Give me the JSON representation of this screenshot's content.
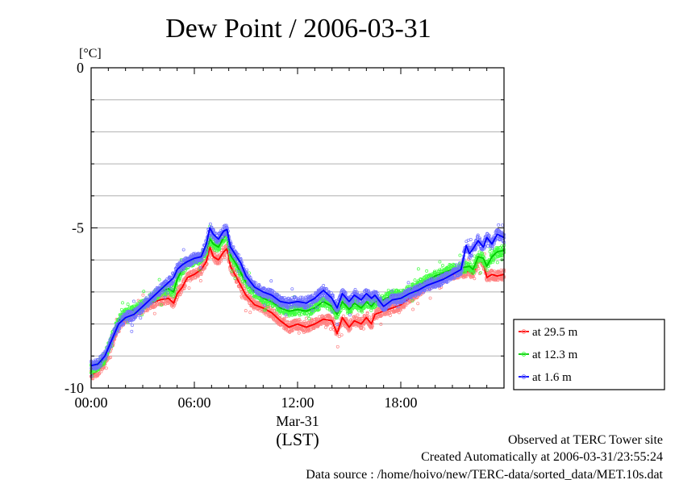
{
  "chart_data": {
    "type": "line",
    "title": "Dew Point / 2006-03-31",
    "unit_label": "[°C]",
    "xlabel": "(LST)",
    "x_date_label": "Mar-31",
    "xlim": [
      0,
      24
    ],
    "ylim": [
      -10,
      0
    ],
    "x_ticks": [
      {
        "x": 0,
        "label": "00:00"
      },
      {
        "x": 6,
        "label": "06:00"
      },
      {
        "x": 12,
        "label": "12:00"
      },
      {
        "x": 18,
        "label": "18:00"
      }
    ],
    "y_ticks": [
      {
        "y": 0,
        "label": "0"
      },
      {
        "y": -5,
        "label": "-5"
      },
      {
        "y": -10,
        "label": "-10"
      }
    ],
    "y_grid": [
      -1,
      -2,
      -3,
      -4,
      -5,
      -6,
      -7,
      -8,
      -9
    ],
    "grid": true,
    "legend_position": "right",
    "series": [
      {
        "name": "at 29.5 m",
        "color": "#ff0000",
        "light_color": "#ff8080",
        "points": [
          [
            0.0,
            -9.6
          ],
          [
            0.4,
            -9.45
          ],
          [
            0.8,
            -9.2
          ],
          [
            1.2,
            -8.6
          ],
          [
            1.6,
            -8.1
          ],
          [
            2.0,
            -7.8
          ],
          [
            2.5,
            -7.65
          ],
          [
            3.0,
            -7.5
          ],
          [
            3.5,
            -7.35
          ],
          [
            4.0,
            -7.25
          ],
          [
            4.5,
            -7.2
          ],
          [
            4.8,
            -7.35
          ],
          [
            5.0,
            -7.05
          ],
          [
            5.3,
            -6.85
          ],
          [
            5.6,
            -6.55
          ],
          [
            6.0,
            -6.45
          ],
          [
            6.4,
            -6.3
          ],
          [
            6.7,
            -6.05
          ],
          [
            6.9,
            -5.6
          ],
          [
            7.1,
            -5.9
          ],
          [
            7.4,
            -6.0
          ],
          [
            7.7,
            -5.75
          ],
          [
            7.9,
            -5.65
          ],
          [
            8.1,
            -6.2
          ],
          [
            8.4,
            -6.5
          ],
          [
            8.7,
            -6.8
          ],
          [
            9.0,
            -7.1
          ],
          [
            9.5,
            -7.4
          ],
          [
            10.0,
            -7.5
          ],
          [
            10.5,
            -7.65
          ],
          [
            11.0,
            -7.9
          ],
          [
            11.5,
            -8.1
          ],
          [
            12.0,
            -8.0
          ],
          [
            12.5,
            -8.1
          ],
          [
            13.0,
            -8.0
          ],
          [
            13.5,
            -7.85
          ],
          [
            14.0,
            -7.9
          ],
          [
            14.3,
            -8.3
          ],
          [
            14.6,
            -7.8
          ],
          [
            15.0,
            -8.1
          ],
          [
            15.3,
            -7.9
          ],
          [
            15.7,
            -8.0
          ],
          [
            16.0,
            -7.8
          ],
          [
            16.3,
            -8.0
          ],
          [
            16.5,
            -7.7
          ],
          [
            17.0,
            -7.6
          ],
          [
            17.5,
            -7.5
          ],
          [
            18.0,
            -7.4
          ],
          [
            18.5,
            -7.2
          ],
          [
            19.0,
            -7.0
          ],
          [
            19.5,
            -6.8
          ],
          [
            20.0,
            -6.65
          ],
          [
            20.5,
            -6.55
          ],
          [
            21.0,
            -6.45
          ],
          [
            21.5,
            -6.4
          ],
          [
            22.0,
            -6.35
          ],
          [
            22.2,
            -6.45
          ],
          [
            22.5,
            -6.0
          ],
          [
            22.8,
            -6.1
          ],
          [
            23.0,
            -6.55
          ],
          [
            23.3,
            -6.45
          ],
          [
            23.6,
            -6.5
          ],
          [
            24.0,
            -6.45
          ]
        ]
      },
      {
        "name": "at 12.3 m",
        "color": "#00c800",
        "light_color": "#40ff40",
        "points": [
          [
            0.0,
            -9.4
          ],
          [
            0.4,
            -9.3
          ],
          [
            0.8,
            -9.05
          ],
          [
            1.2,
            -8.4
          ],
          [
            1.6,
            -7.9
          ],
          [
            2.0,
            -7.7
          ],
          [
            2.5,
            -7.55
          ],
          [
            3.0,
            -7.4
          ],
          [
            3.5,
            -7.2
          ],
          [
            4.0,
            -7.0
          ],
          [
            4.5,
            -6.9
          ],
          [
            4.8,
            -7.0
          ],
          [
            5.0,
            -6.6
          ],
          [
            5.3,
            -6.3
          ],
          [
            5.6,
            -6.1
          ],
          [
            6.0,
            -6.0
          ],
          [
            6.4,
            -5.95
          ],
          [
            6.7,
            -5.7
          ],
          [
            6.9,
            -5.35
          ],
          [
            7.1,
            -5.5
          ],
          [
            7.4,
            -5.6
          ],
          [
            7.7,
            -5.3
          ],
          [
            7.9,
            -5.2
          ],
          [
            8.1,
            -5.85
          ],
          [
            8.4,
            -6.1
          ],
          [
            8.7,
            -6.4
          ],
          [
            9.0,
            -6.7
          ],
          [
            9.5,
            -7.0
          ],
          [
            10.0,
            -7.2
          ],
          [
            10.5,
            -7.3
          ],
          [
            11.0,
            -7.5
          ],
          [
            11.5,
            -7.6
          ],
          [
            12.0,
            -7.55
          ],
          [
            12.5,
            -7.6
          ],
          [
            13.0,
            -7.5
          ],
          [
            13.5,
            -7.3
          ],
          [
            14.0,
            -7.45
          ],
          [
            14.3,
            -7.7
          ],
          [
            14.6,
            -7.3
          ],
          [
            15.0,
            -7.55
          ],
          [
            15.3,
            -7.35
          ],
          [
            15.7,
            -7.5
          ],
          [
            16.0,
            -7.3
          ],
          [
            16.3,
            -7.45
          ],
          [
            16.5,
            -7.3
          ],
          [
            17.0,
            -7.25
          ],
          [
            17.5,
            -7.1
          ],
          [
            18.0,
            -7.1
          ],
          [
            18.5,
            -6.95
          ],
          [
            19.0,
            -6.8
          ],
          [
            19.5,
            -6.65
          ],
          [
            20.0,
            -6.5
          ],
          [
            20.5,
            -6.4
          ],
          [
            21.0,
            -6.3
          ],
          [
            21.5,
            -6.25
          ],
          [
            22.0,
            -6.2
          ],
          [
            22.2,
            -6.3
          ],
          [
            22.5,
            -5.9
          ],
          [
            22.8,
            -5.95
          ],
          [
            23.0,
            -6.2
          ],
          [
            23.3,
            -5.9
          ],
          [
            23.6,
            -5.75
          ],
          [
            24.0,
            -5.7
          ]
        ]
      },
      {
        "name": "at 1.6 m",
        "color": "#0000ff",
        "light_color": "#7070ff",
        "points": [
          [
            0.0,
            -9.3
          ],
          [
            0.4,
            -9.25
          ],
          [
            0.8,
            -9.0
          ],
          [
            1.2,
            -8.5
          ],
          [
            1.6,
            -8.0
          ],
          [
            2.0,
            -7.8
          ],
          [
            2.5,
            -7.7
          ],
          [
            3.0,
            -7.45
          ],
          [
            3.5,
            -7.2
          ],
          [
            4.0,
            -6.95
          ],
          [
            4.5,
            -6.7
          ],
          [
            4.8,
            -6.55
          ],
          [
            5.0,
            -6.3
          ],
          [
            5.3,
            -6.15
          ],
          [
            5.6,
            -6.05
          ],
          [
            6.0,
            -5.95
          ],
          [
            6.4,
            -5.9
          ],
          [
            6.7,
            -5.5
          ],
          [
            6.9,
            -5.0
          ],
          [
            7.1,
            -5.2
          ],
          [
            7.4,
            -5.35
          ],
          [
            7.7,
            -5.1
          ],
          [
            7.9,
            -5.05
          ],
          [
            8.1,
            -5.6
          ],
          [
            8.4,
            -5.85
          ],
          [
            8.7,
            -6.1
          ],
          [
            9.0,
            -6.5
          ],
          [
            9.5,
            -6.85
          ],
          [
            10.0,
            -7.0
          ],
          [
            10.5,
            -7.1
          ],
          [
            11.0,
            -7.3
          ],
          [
            11.5,
            -7.35
          ],
          [
            12.0,
            -7.3
          ],
          [
            12.5,
            -7.35
          ],
          [
            13.0,
            -7.2
          ],
          [
            13.5,
            -6.95
          ],
          [
            14.0,
            -7.2
          ],
          [
            14.3,
            -7.5
          ],
          [
            14.6,
            -7.05
          ],
          [
            15.0,
            -7.3
          ],
          [
            15.3,
            -7.1
          ],
          [
            15.7,
            -7.25
          ],
          [
            16.0,
            -7.05
          ],
          [
            16.3,
            -7.2
          ],
          [
            16.5,
            -7.1
          ],
          [
            17.0,
            -7.45
          ],
          [
            17.5,
            -7.25
          ],
          [
            18.0,
            -7.2
          ],
          [
            18.5,
            -7.05
          ],
          [
            19.0,
            -6.95
          ],
          [
            19.5,
            -6.8
          ],
          [
            20.0,
            -6.7
          ],
          [
            20.5,
            -6.6
          ],
          [
            21.0,
            -6.45
          ],
          [
            21.5,
            -6.3
          ],
          [
            21.8,
            -5.55
          ],
          [
            22.0,
            -5.8
          ],
          [
            22.2,
            -5.65
          ],
          [
            22.5,
            -5.4
          ],
          [
            22.8,
            -5.6
          ],
          [
            23.0,
            -5.3
          ],
          [
            23.3,
            -5.5
          ],
          [
            23.6,
            -5.2
          ],
          [
            24.0,
            -5.3
          ]
        ]
      }
    ]
  },
  "footer": {
    "site": "Observed at TERC Tower site",
    "created": "Created Automatically at 2006-03-31/23:55:24",
    "source": "Data source : /home/hoivo/new/TERC-data/sorted_data/MET.10s.dat"
  }
}
